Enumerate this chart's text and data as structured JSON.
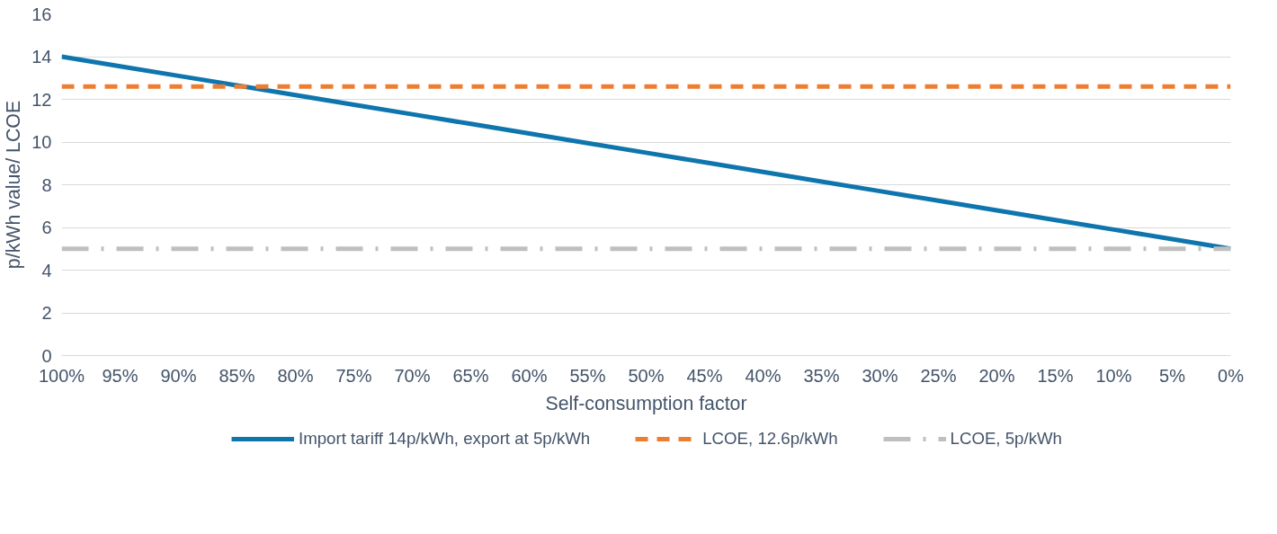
{
  "chart_data": {
    "type": "line",
    "xlabel": "Self-consumption factor",
    "ylabel": "p/kWh value/ LCOE",
    "categories": [
      "100%",
      "95%",
      "90%",
      "85%",
      "80%",
      "75%",
      "70%",
      "65%",
      "60%",
      "55%",
      "50%",
      "45%",
      "40%",
      "35%",
      "30%",
      "25%",
      "20%",
      "15%",
      "10%",
      "5%",
      "0%"
    ],
    "series": [
      {
        "name": "Import tariff 14p/kWh, export at 5p/kWh",
        "color": "#0e75ad",
        "line_style": "solid",
        "values": [
          14,
          13.55,
          13.1,
          12.65,
          12.2,
          11.75,
          11.3,
          10.85,
          10.4,
          9.95,
          9.5,
          9.05,
          8.6,
          8.15,
          7.7,
          7.25,
          6.8,
          6.35,
          5.9,
          5.45,
          5
        ]
      },
      {
        "name": "LCOE, 12.6p/kWh",
        "color": "#ed7d31",
        "line_style": "dashed",
        "values": [
          12.6,
          12.6,
          12.6,
          12.6,
          12.6,
          12.6,
          12.6,
          12.6,
          12.6,
          12.6,
          12.6,
          12.6,
          12.6,
          12.6,
          12.6,
          12.6,
          12.6,
          12.6,
          12.6,
          12.6,
          12.6
        ]
      },
      {
        "name": "LCOE, 5p/kWh",
        "color": "#bfbfbf",
        "line_style": "dashdot",
        "values": [
          5,
          5,
          5,
          5,
          5,
          5,
          5,
          5,
          5,
          5,
          5,
          5,
          5,
          5,
          5,
          5,
          5,
          5,
          5,
          5,
          5
        ]
      }
    ],
    "ylim": [
      0,
      16
    ],
    "yticks": [
      0,
      2,
      4,
      6,
      8,
      10,
      12,
      14,
      16
    ],
    "grid": "y",
    "legend": "bottom"
  }
}
